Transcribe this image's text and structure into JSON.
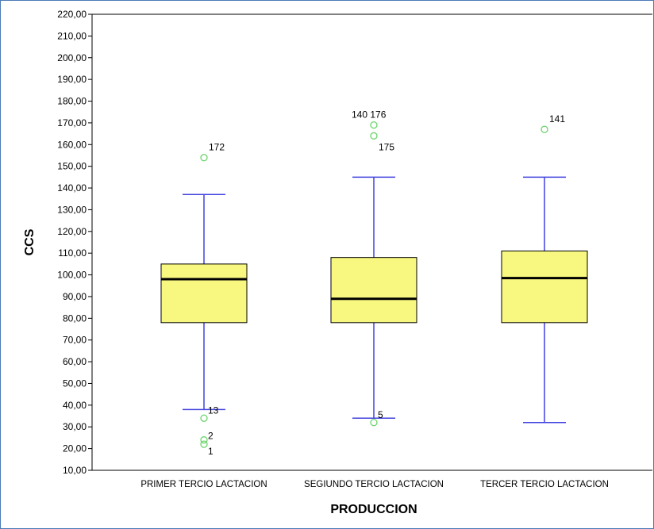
{
  "chart_data": {
    "type": "boxplot",
    "xlabel": "PRODUCCION",
    "ylabel": "CCS",
    "ylim": [
      10,
      220
    ],
    "y_ticks": [
      "10,00",
      "20,00",
      "30,00",
      "40,00",
      "50,00",
      "60,00",
      "70,00",
      "80,00",
      "90,00",
      "100,00",
      "110,00",
      "120,00",
      "130,00",
      "140,00",
      "150,00",
      "160,00",
      "170,00",
      "180,00",
      "190,00",
      "200,00",
      "210,00",
      "220,00"
    ],
    "grid": false,
    "colors": {
      "box_fill": "#f8f880",
      "whisker": "#4040e0",
      "outlier": "#6ad46a",
      "median": "#000000"
    },
    "categories": [
      "PRIMER TERCIO LACTACION",
      "SEGIUNDO TERCIO LACTACION",
      "TERCER TERCIO LACTACION"
    ],
    "boxes": [
      {
        "min": 38,
        "q1": 78,
        "median": 98,
        "q3": 105,
        "max": 137,
        "outliers": [
          {
            "value": 154,
            "label": "172"
          },
          {
            "value": 34,
            "label": "13"
          },
          {
            "value": 24,
            "label": "2"
          },
          {
            "value": 22,
            "label": "1"
          }
        ]
      },
      {
        "min": 34,
        "q1": 78,
        "median": 89,
        "q3": 108,
        "max": 145,
        "outliers": [
          {
            "value": 169,
            "label": "140 176"
          },
          {
            "value": 164,
            "label": "175"
          },
          {
            "value": 32,
            "label": "5"
          }
        ]
      },
      {
        "min": 32,
        "q1": 78,
        "median": 98.5,
        "q3": 111,
        "max": 145,
        "outliers": [
          {
            "value": 167,
            "label": "141"
          }
        ]
      }
    ]
  }
}
